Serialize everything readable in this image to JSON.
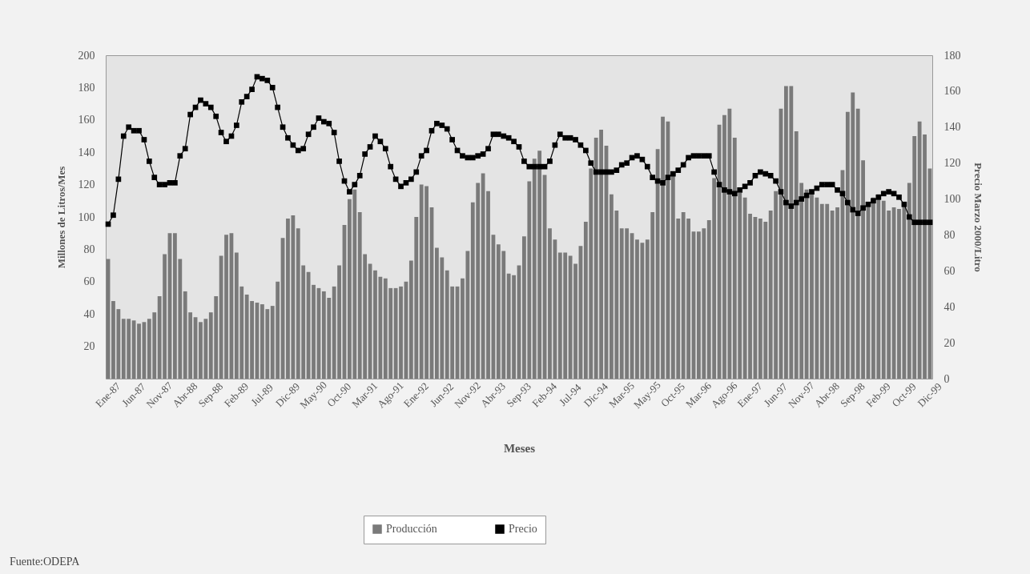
{
  "chart_data": {
    "type": "bar",
    "xlabel": "Meses",
    "ylabel": "Millones de Litros/Mes",
    "y2label": "Precio Marzo 2000/Litro",
    "categories": [
      "Ene-87",
      null,
      null,
      null,
      null,
      "Jun-87",
      null,
      null,
      null,
      null,
      "Nov-87",
      null,
      null,
      null,
      null,
      "Abr-88",
      null,
      null,
      null,
      null,
      "Sep-88",
      null,
      null,
      null,
      null,
      "Feb-89",
      null,
      null,
      null,
      null,
      "Jul-89",
      null,
      null,
      null,
      null,
      "Dic-89",
      null,
      null,
      null,
      null,
      "May-90",
      null,
      null,
      null,
      null,
      "Oct-90",
      null,
      null,
      null,
      null,
      "Mar-91",
      null,
      null,
      null,
      null,
      "Ago-91",
      null,
      null,
      null,
      null,
      "Ene-92",
      null,
      null,
      null,
      null,
      "Jun-92",
      null,
      null,
      null,
      null,
      "Nov-92",
      null,
      null,
      null,
      null,
      "Abr-93",
      null,
      null,
      null,
      null,
      "Sep-93",
      null,
      null,
      null,
      null,
      "Feb-94",
      null,
      null,
      null,
      null,
      "Jul-94",
      null,
      null,
      null,
      null,
      "Dic-94",
      null,
      null,
      null,
      null,
      "Mar-95",
      null,
      null,
      null,
      null,
      "May-95",
      null,
      null,
      null,
      null,
      "Oct-95",
      null,
      null,
      null,
      null,
      "Mar-96",
      null,
      null,
      null,
      null,
      "Ago-96",
      null,
      null,
      null,
      null,
      "Ene-97",
      null,
      null,
      null,
      null,
      "Jun-97",
      null,
      null,
      null,
      null,
      "Nov-97",
      null,
      null,
      null,
      null,
      "Abr-98",
      null,
      null,
      null,
      null,
      "Sep-98",
      null,
      null,
      null,
      null,
      "Feb-99",
      null,
      null,
      null,
      null,
      "Oct-99",
      null,
      null,
      null,
      null,
      "Dic-99"
    ],
    "series": [
      {
        "name": "Producción",
        "color": "#7a7a7a",
        "values": [
          74,
          48,
          43,
          37,
          37,
          36,
          34,
          35,
          37,
          41,
          51,
          77,
          90,
          90,
          74,
          54,
          41,
          38,
          35,
          37,
          41,
          51,
          76,
          89,
          90,
          78,
          57,
          52,
          48,
          47,
          46,
          43,
          45,
          60,
          87,
          99,
          101,
          93,
          70,
          66,
          58,
          56,
          54,
          50,
          57,
          70,
          95,
          111,
          117,
          103,
          77,
          71,
          67,
          63,
          62,
          56,
          56,
          57,
          60,
          73,
          100,
          120,
          119,
          106,
          81,
          75,
          67,
          57,
          57,
          62,
          79,
          109,
          121,
          127,
          116,
          89,
          83,
          79,
          65,
          64,
          70,
          88,
          122,
          136,
          141,
          126,
          93,
          86,
          78,
          78,
          76,
          71,
          82,
          97,
          130,
          149,
          154,
          144,
          114,
          104,
          93,
          93,
          90,
          86,
          84,
          86,
          103,
          142,
          162,
          159,
          127,
          99,
          103,
          99,
          91,
          91,
          93,
          98,
          124,
          157,
          163,
          167,
          149,
          115,
          112,
          102,
          100,
          99,
          97,
          104,
          116,
          167,
          181,
          181,
          153,
          121,
          117,
          115,
          112,
          108,
          108,
          104,
          106,
          129,
          165,
          177,
          167,
          135,
          108,
          112,
          114,
          110,
          104,
          106,
          105,
          107,
          121,
          150,
          159,
          151,
          130
        ]
      },
      {
        "name": "Precio",
        "type": "line",
        "axis": "y2",
        "color": "#000000",
        "values": [
          86,
          91,
          111,
          135,
          140,
          138,
          138,
          133,
          121,
          112,
          108,
          108,
          109,
          109,
          124,
          128,
          147,
          151,
          155,
          153,
          151,
          146,
          137,
          132,
          135,
          141,
          154,
          157,
          161,
          168,
          167,
          166,
          162,
          151,
          140,
          134,
          130,
          127,
          128,
          136,
          140,
          145,
          143,
          142,
          137,
          121,
          110,
          104,
          108,
          113,
          125,
          129,
          135,
          132,
          128,
          118,
          111,
          107,
          109,
          111,
          115,
          124,
          127,
          138,
          142,
          141,
          139,
          133,
          127,
          124,
          123,
          123,
          124,
          125,
          128,
          136,
          136,
          135,
          134,
          132,
          129,
          121,
          118,
          118,
          118,
          118,
          121,
          130,
          136,
          134,
          134,
          133,
          130,
          127,
          120,
          115,
          115,
          115,
          115,
          116,
          119,
          120,
          123,
          124,
          122,
          118,
          112,
          110,
          109,
          112,
          114,
          116,
          119,
          123,
          124,
          124,
          124,
          124,
          115,
          108,
          105,
          104,
          103,
          105,
          107,
          109,
          113,
          115,
          114,
          113,
          110,
          104,
          98,
          96,
          98,
          100,
          102,
          104,
          106,
          108,
          108,
          108,
          105,
          103,
          98,
          94,
          92,
          95,
          97,
          99,
          101,
          103,
          104,
          103,
          101,
          97,
          90,
          87,
          87,
          87,
          87
        ]
      }
    ],
    "ylim": [
      0,
      200
    ],
    "yticks": [
      20,
      40,
      60,
      80,
      100,
      120,
      140,
      160,
      180,
      200
    ],
    "y2lim": [
      0,
      180
    ],
    "y2ticks": [
      0,
      20,
      40,
      60,
      80,
      100,
      120,
      140,
      160,
      180
    ],
    "marker": "square",
    "legend": "bottom",
    "annotations": [
      "Fuente:ODEPA"
    ]
  }
}
